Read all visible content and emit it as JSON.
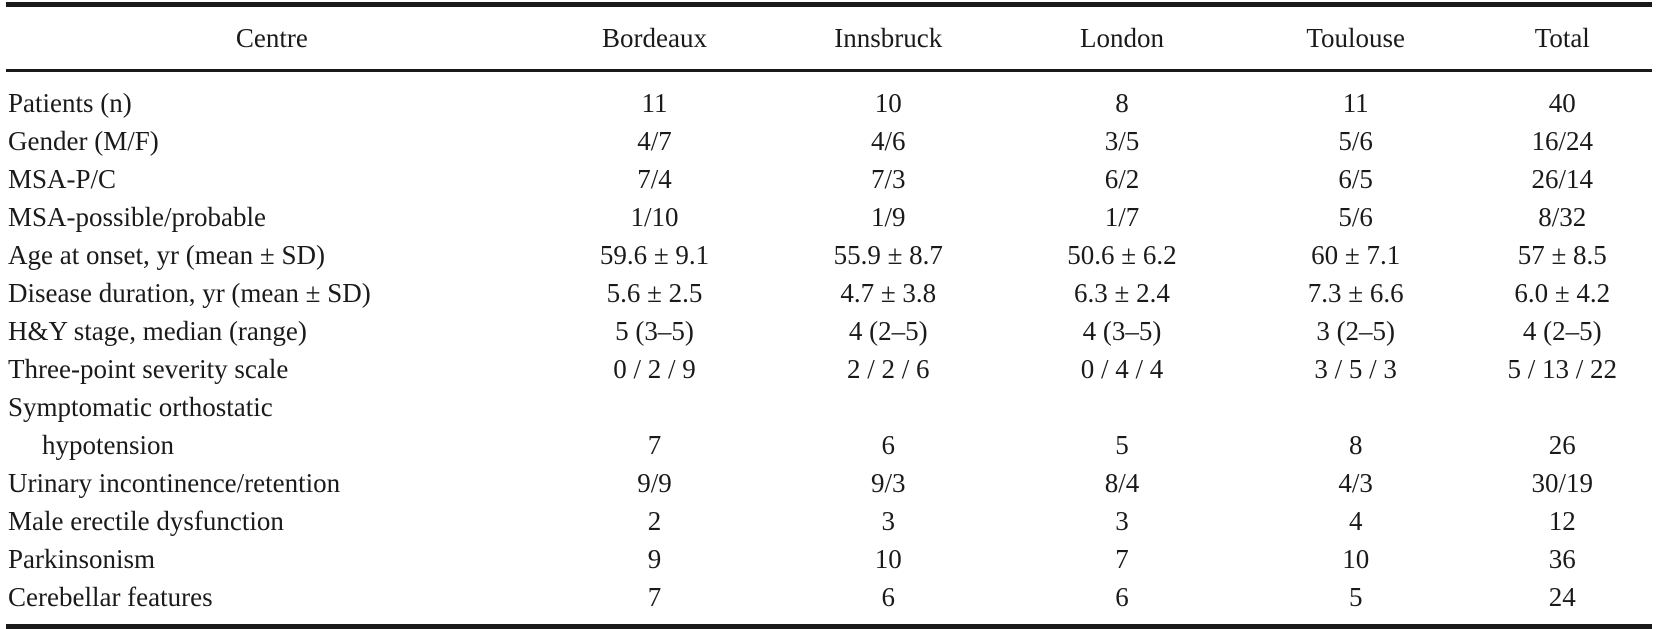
{
  "colors": {
    "text": "#1a1a1a",
    "rule": "#1a1a1a",
    "background": "#ffffff"
  },
  "table": {
    "columns": [
      "Centre",
      "Bordeaux",
      "Innsbruck",
      "London",
      "Toulouse",
      "Total"
    ],
    "rows": [
      {
        "label": "Patients (n)",
        "values": [
          "11",
          "10",
          "8",
          "11",
          "40"
        ]
      },
      {
        "label": "Gender (M/F)",
        "values": [
          "4/7",
          "4/6",
          "3/5",
          "5/6",
          "16/24"
        ]
      },
      {
        "label": "MSA-P/C",
        "values": [
          "7/4",
          "7/3",
          "6/2",
          "6/5",
          "26/14"
        ]
      },
      {
        "label": "MSA-possible/probable",
        "values": [
          "1/10",
          "1/9",
          "1/7",
          "5/6",
          "8/32"
        ]
      },
      {
        "label": "Age at onset, yr (mean ± SD)",
        "values": [
          "59.6 ± 9.1",
          "55.9 ± 8.7",
          "50.6 ± 6.2",
          "60 ± 7.1",
          "57 ± 8.5"
        ]
      },
      {
        "label": "Disease duration, yr (mean ± SD)",
        "values": [
          "5.6 ± 2.5",
          "4.7 ± 3.8",
          "6.3 ± 2.4",
          "7.3 ± 6.6",
          "6.0 ± 4.2"
        ]
      },
      {
        "label": "H&Y stage, median (range)",
        "values": [
          "5 (3–5)",
          "4 (2–5)",
          "4 (3–5)",
          "3 (2–5)",
          "4 (2–5)"
        ]
      },
      {
        "label": "Three-point severity scale",
        "values": [
          "0 / 2 / 9",
          "2 / 2 / 6",
          "0 / 4 / 4",
          "3 / 5 / 3",
          "5 / 13 / 22"
        ]
      },
      {
        "label": "Symptomatic orthostatic",
        "values": [
          "",
          "",
          "",
          "",
          ""
        ]
      },
      {
        "label": "hypotension",
        "values": [
          "7",
          "6",
          "5",
          "8",
          "26"
        ]
      },
      {
        "label": "Urinary incontinence/retention",
        "values": [
          "9/9",
          "9/3",
          "8/4",
          "4/3",
          "30/19"
        ]
      },
      {
        "label": "Male erectile dysfunction",
        "values": [
          "2",
          "3",
          "3",
          "4",
          "12"
        ]
      },
      {
        "label": "Parkinsonism",
        "values": [
          "9",
          "10",
          "7",
          "10",
          "36"
        ]
      },
      {
        "label": "Cerebellar features",
        "values": [
          "7",
          "6",
          "6",
          "5",
          "24"
        ]
      }
    ]
  }
}
